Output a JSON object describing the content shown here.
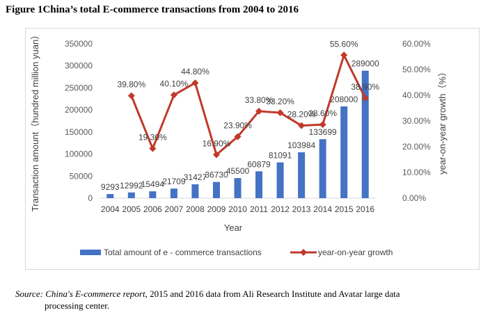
{
  "figure": {
    "title": "Figure 1China’s total E-commerce transactions from 2004 to 2016",
    "source_label": "Source",
    "source_report": "China's E-commerce report",
    "source_rest": ", 2015 and 2016 data from Ali Research Institute and Avatar large data",
    "source_line2": "processing center."
  },
  "chart_data": {
    "type": "bar+line",
    "title": "",
    "xlabel": "Year",
    "ylabel_left": "Transaction amount（hundred million yuan）",
    "ylabel_right": "year-on-year growth（%）",
    "categories": [
      "2004",
      "2005",
      "2006",
      "2007",
      "2008",
      "2009",
      "2010",
      "2011",
      "2012",
      "2013",
      "2014",
      "2015",
      "2016"
    ],
    "ylim_left": [
      0,
      350000
    ],
    "yticks_left": [
      0,
      50000,
      100000,
      150000,
      200000,
      250000,
      300000,
      350000
    ],
    "ylim_right": [
      0,
      60
    ],
    "yticks_right": [
      "0.00%",
      "10.00%",
      "20.00%",
      "30.00%",
      "40.00%",
      "50.00%",
      "60.00%"
    ],
    "legend_position": "bottom",
    "series": [
      {
        "name": "Total amount of e - commerce transactions",
        "type": "bar",
        "axis": "left",
        "color": "#4472c4",
        "values": [
          9293,
          12992,
          15494,
          21709,
          31427,
          36730,
          45500,
          60879,
          81091,
          103984,
          133699,
          208000,
          289000
        ],
        "labels": [
          "9293",
          "12992",
          "15494",
          "21709",
          "31427",
          "36730",
          "45500",
          "60879",
          "81091",
          "103984",
          "133699",
          "208000",
          "289000"
        ]
      },
      {
        "name": "year-on-year growth",
        "type": "line",
        "axis": "right",
        "color": "#c0392b",
        "values": [
          null,
          39.8,
          19.3,
          40.1,
          44.8,
          16.9,
          23.9,
          33.8,
          33.2,
          28.2,
          28.6,
          55.6,
          38.9
        ],
        "labels": [
          "",
          "39.80%",
          "19.30%",
          "40.10%",
          "44.80%",
          "16.90%",
          "23.90%",
          "33.80%",
          "33.20%",
          "28.20%",
          "28.60%",
          "55.60%",
          "38.90%"
        ]
      }
    ]
  }
}
